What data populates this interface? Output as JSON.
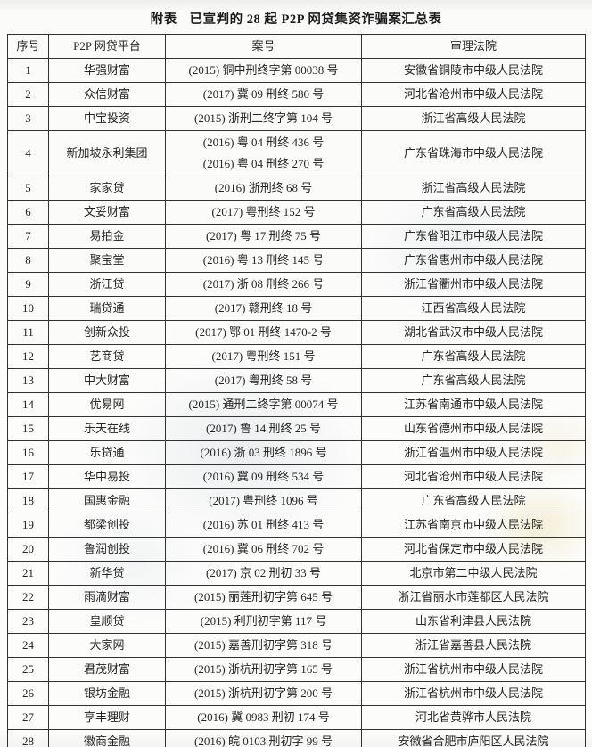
{
  "title": {
    "prefix": "附表",
    "main": "已宣判的 28 起 P2P 网贷集资诈骗案汇总表"
  },
  "table": {
    "headers": [
      "序号",
      "P2P 网贷平台",
      "案号",
      "审理法院"
    ],
    "rows": [
      {
        "no": "1",
        "platform": "华强财富",
        "cases": [
          "(2015) 铜中刑终字第 00038 号"
        ],
        "court": "安徽省铜陵市中级人民法院"
      },
      {
        "no": "2",
        "platform": "众信财富",
        "cases": [
          "(2017) 冀 09 刑终 580 号"
        ],
        "court": "河北省沧州市中级人民法院"
      },
      {
        "no": "3",
        "platform": "中宝投资",
        "cases": [
          "(2015) 浙刑二终字第 104 号"
        ],
        "court": "浙江省高级人民法院"
      },
      {
        "no": "4",
        "platform": "新加坡永利集团",
        "cases": [
          "(2016) 粤 04 刑终 436 号",
          "(2016) 粤 04 刑终 270 号"
        ],
        "court": "广东省珠海市中级人民法院"
      },
      {
        "no": "5",
        "platform": "家家贷",
        "cases": [
          "(2016) 浙刑终 68 号"
        ],
        "court": "浙江省高级人民法院"
      },
      {
        "no": "6",
        "platform": "文妥财富",
        "cases": [
          "(2017) 粤刑终 152 号"
        ],
        "court": "广东省高级人民法院"
      },
      {
        "no": "7",
        "platform": "易拍金",
        "cases": [
          "(2017) 粤 17 刑终 75 号"
        ],
        "court": "广东省阳江市中级人民法院"
      },
      {
        "no": "8",
        "platform": "聚宝堂",
        "cases": [
          "(2016) 粤 13 刑终 145 号"
        ],
        "court": "广东省惠州市中级人民法院"
      },
      {
        "no": "9",
        "platform": "浙江贷",
        "cases": [
          "(2017) 浙 08 刑终 266 号"
        ],
        "court": "浙江省衢州市中级人民法院"
      },
      {
        "no": "10",
        "platform": "瑞贷通",
        "cases": [
          "(2017) 赣刑终 18 号"
        ],
        "court": "江西省高级人民法院"
      },
      {
        "no": "11",
        "platform": "创新众投",
        "cases": [
          "(2017) 鄂 01 刑终 1470-2 号"
        ],
        "court": "湖北省武汉市中级人民法院"
      },
      {
        "no": "12",
        "platform": "艺商贷",
        "cases": [
          "(2017) 粤刑终 151 号"
        ],
        "court": "广东省高级人民法院"
      },
      {
        "no": "13",
        "platform": "中大财富",
        "cases": [
          "(2017) 粤刑终 58 号"
        ],
        "court": "广东省高级人民法院"
      },
      {
        "no": "14",
        "platform": "优易网",
        "cases": [
          "(2015) 通刑二终字第 00074 号"
        ],
        "court": "江苏省南通市中级人民法院"
      },
      {
        "no": "15",
        "platform": "乐天在线",
        "cases": [
          "(2017) 鲁 14 刑终 25 号"
        ],
        "court": "山东省德州市中级人民法院"
      },
      {
        "no": "16",
        "platform": "乐贷通",
        "cases": [
          "(2016) 浙 03 刑终 1896 号"
        ],
        "court": "浙江省温州市中级人民法院"
      },
      {
        "no": "17",
        "platform": "华中易投",
        "cases": [
          "(2016) 冀 09 刑终 534 号"
        ],
        "court": "河北省沧州市中级人民法院"
      },
      {
        "no": "18",
        "platform": "国惠金融",
        "cases": [
          "(2017) 粤刑终 1096 号"
        ],
        "court": "广东省高级人民法院"
      },
      {
        "no": "19",
        "platform": "都梁创投",
        "cases": [
          "(2016) 苏 01 刑终 413 号"
        ],
        "court": "江苏省南京市中级人民法院"
      },
      {
        "no": "20",
        "platform": "鲁润创投",
        "cases": [
          "(2016) 冀 06 刑终 702 号"
        ],
        "court": "河北省保定市中级人民法院"
      },
      {
        "no": "21",
        "platform": "新华贷",
        "cases": [
          "(2017) 京 02 刑初 33 号"
        ],
        "court": "北京市第二中级人民法院"
      },
      {
        "no": "22",
        "platform": "雨滴财富",
        "cases": [
          "(2015) 丽莲刑初字第 645 号"
        ],
        "court": "浙江省丽水市莲都区人民法院"
      },
      {
        "no": "23",
        "platform": "皇顺贷",
        "cases": [
          "(2015) 利刑初字第 117 号"
        ],
        "court": "山东省利津县人民法院"
      },
      {
        "no": "24",
        "platform": "大家网",
        "cases": [
          "(2015) 嘉善刑初字第 318 号"
        ],
        "court": "浙江省嘉善县人民法院"
      },
      {
        "no": "25",
        "platform": "君茂财富",
        "cases": [
          "(2015) 浙杭刑初字第 165 号"
        ],
        "court": "浙江省杭州市中级人民法院"
      },
      {
        "no": "26",
        "platform": "银坊金融",
        "cases": [
          "(2015) 浙杭刑初字第 200 号"
        ],
        "court": "浙江省杭州市中级人民法院"
      },
      {
        "no": "27",
        "platform": "亨丰理财",
        "cases": [
          "(2016) 冀 0983 刑初 174 号"
        ],
        "court": "河北省黄骅市人民法院"
      },
      {
        "no": "28",
        "platform": "徽商金融",
        "cases": [
          "(2016) 皖 0103 刑初字 99 号"
        ],
        "court": "安徽省合肥市庐阳区人民法院"
      }
    ]
  }
}
